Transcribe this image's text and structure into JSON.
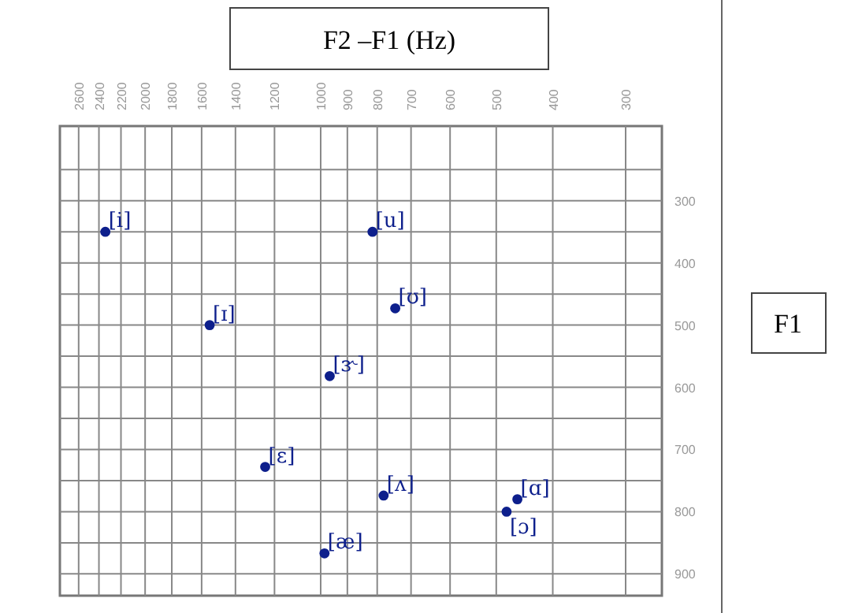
{
  "chart_data": {
    "type": "scatter",
    "title": "F2 –F1 (Hz)",
    "ylabel": "F1",
    "x": [
      2340,
      815,
      745,
      1550,
      965,
      1245,
      780,
      460,
      480,
      985
    ],
    "series": [
      {
        "color": "#0d1f8c",
        "values": [
          350,
          350,
          473,
          500,
          582,
          728,
          774,
          780,
          800,
          867
        ]
      }
    ],
    "xlim": [
      2800,
      260
    ],
    "log": "x",
    "xticks": [
      2600,
      2400,
      2200,
      2000,
      1800,
      1600,
      1400,
      1200,
      1000,
      900,
      800,
      700,
      600,
      500,
      400,
      300
    ],
    "ylim": [
      935,
      180
    ],
    "yticks": [
      {
        "value": 250,
        "label": null
      },
      300,
      {
        "value": 350,
        "label": null
      },
      400,
      {
        "value": 450,
        "label": null
      },
      500,
      {
        "value": 550,
        "label": null
      },
      600,
      {
        "value": 650,
        "label": null
      },
      700,
      {
        "value": 750,
        "label": null
      },
      800,
      {
        "value": 850,
        "label": null
      },
      900
    ],
    "grid": true,
    "marker": "circle",
    "annotations": [
      {
        "text": "[i]",
        "x": 2340,
        "y": 350
      },
      {
        "text": "[u]",
        "x": 815,
        "y": 350
      },
      {
        "text": "[ʊ]",
        "x": 745,
        "y": 473
      },
      {
        "text": "[ɪ]",
        "x": 1550,
        "y": 500
      },
      {
        "text": "[ɝ]",
        "x": 965,
        "y": 582
      },
      {
        "text": "[ɛ]",
        "x": 1245,
        "y": 728
      },
      {
        "text": "[ʌ]",
        "x": 780,
        "y": 774
      },
      {
        "text": "[ɑ]",
        "x": 460,
        "y": 780
      },
      {
        "text": "[ɔ]",
        "x": 480,
        "y": 800
      },
      {
        "text": "[æ]",
        "x": 985,
        "y": 867
      }
    ]
  }
}
